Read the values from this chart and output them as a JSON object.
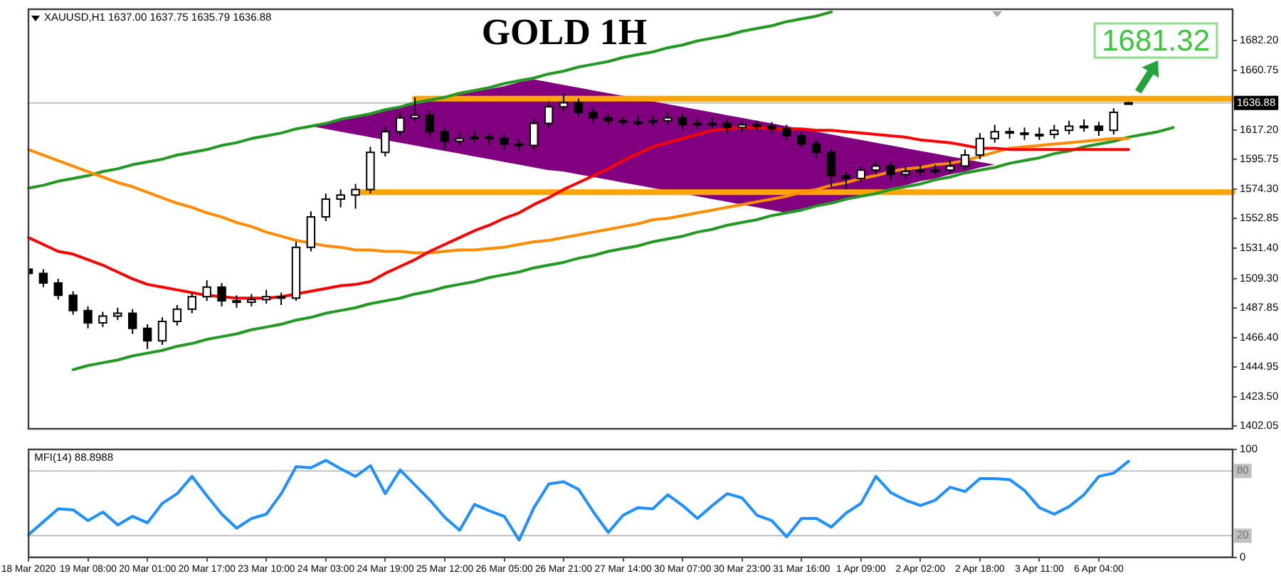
{
  "chart_data": [
    {
      "type": "candlestick",
      "title": "GOLD 1H",
      "subtitle": "XAUUSD,H1 1637.00 1637.75 1635.79 1636.88",
      "categories": [
        null,
        null,
        null,
        null,
        null,
        null,
        null,
        null,
        null,
        null,
        null,
        null,
        null,
        null,
        null,
        null,
        null,
        null,
        null,
        null,
        null,
        null,
        null,
        null,
        null,
        null,
        null,
        null,
        null,
        null,
        null,
        null,
        null,
        null,
        null,
        null,
        null,
        null,
        null,
        null,
        null,
        null,
        null,
        null,
        null,
        null,
        null,
        null,
        null,
        null,
        null,
        null,
        null,
        null,
        null,
        null,
        null,
        null,
        null,
        null,
        null,
        null,
        null,
        null,
        null,
        null,
        null,
        null,
        null,
        null,
        null,
        null,
        null,
        null,
        null,
        null,
        null,
        null,
        null,
        null,
        null,
        null
      ],
      "ohlc": [
        [
          1516,
          1519,
          1510,
          1513
        ],
        [
          1513,
          1516,
          1503,
          1506
        ],
        [
          1506,
          1509,
          1494,
          1497
        ],
        [
          1497,
          1500,
          1483,
          1486
        ],
        [
          1486,
          1489,
          1473,
          1477
        ],
        [
          1477,
          1485,
          1474,
          1482
        ],
        [
          1482,
          1488,
          1479,
          1484
        ],
        [
          1484,
          1487,
          1469,
          1473
        ],
        [
          1473,
          1476,
          1458,
          1464
        ],
        [
          1464,
          1481,
          1461,
          1478
        ],
        [
          1478,
          1490,
          1475,
          1487
        ],
        [
          1487,
          1499,
          1484,
          1496
        ],
        [
          1496,
          1508,
          1493,
          1503
        ],
        [
          1503,
          1506,
          1489,
          1493
        ],
        [
          1493,
          1497,
          1488,
          1492
        ],
        [
          1492,
          1498,
          1489,
          1494
        ],
        [
          1494,
          1501,
          1491,
          1496
        ],
        [
          1496,
          1499,
          1490,
          1495
        ],
        [
          1495,
          1536,
          1493,
          1532
        ],
        [
          1532,
          1558,
          1529,
          1554
        ],
        [
          1554,
          1571,
          1551,
          1567
        ],
        [
          1567,
          1574,
          1561,
          1570
        ],
        [
          1570,
          1578,
          1560,
          1574
        ],
        [
          1574,
          1605,
          1571,
          1601
        ],
        [
          1601,
          1620,
          1598,
          1616
        ],
        [
          1616,
          1630,
          1613,
          1626
        ],
        [
          1626,
          1641,
          1623,
          1628
        ],
        [
          1628,
          1631,
          1612,
          1616
        ],
        [
          1616,
          1619,
          1603,
          1609
        ],
        [
          1609,
          1615,
          1606,
          1611
        ],
        [
          1611,
          1617,
          1608,
          1612
        ],
        [
          1612,
          1615,
          1606,
          1611
        ],
        [
          1611,
          1614,
          1603,
          1607
        ],
        [
          1607,
          1611,
          1602,
          1606
        ],
        [
          1606,
          1626,
          1603,
          1622
        ],
        [
          1622,
          1638,
          1619,
          1634
        ],
        [
          1634,
          1644,
          1631,
          1637
        ],
        [
          1637,
          1640,
          1627,
          1630
        ],
        [
          1630,
          1633,
          1622,
          1626
        ],
        [
          1626,
          1629,
          1621,
          1624
        ],
        [
          1624,
          1627,
          1620,
          1623
        ],
        [
          1623,
          1628,
          1620,
          1623
        ],
        [
          1623,
          1628,
          1620,
          1624
        ],
        [
          1624,
          1630,
          1621,
          1626
        ],
        [
          1626,
          1629,
          1617,
          1621
        ],
        [
          1621,
          1626,
          1618,
          1622
        ],
        [
          1622,
          1627,
          1618,
          1622
        ],
        [
          1622,
          1625,
          1615,
          1619
        ],
        [
          1619,
          1624,
          1616,
          1621
        ],
        [
          1621,
          1624,
          1617,
          1620
        ],
        [
          1620,
          1623,
          1615,
          1618
        ],
        [
          1618,
          1621,
          1610,
          1613
        ],
        [
          1613,
          1616,
          1604,
          1607
        ],
        [
          1607,
          1610,
          1597,
          1601
        ],
        [
          1601,
          1604,
          1576,
          1584
        ],
        [
          1584,
          1587,
          1574,
          1582
        ],
        [
          1582,
          1591,
          1579,
          1588
        ],
        [
          1588,
          1595,
          1585,
          1591
        ],
        [
          1591,
          1594,
          1581,
          1585
        ],
        [
          1585,
          1591,
          1582,
          1587
        ],
        [
          1587,
          1592,
          1584,
          1588
        ],
        [
          1588,
          1592,
          1585,
          1588
        ],
        [
          1588,
          1596,
          1585,
          1591
        ],
        [
          1591,
          1603,
          1588,
          1599
        ],
        [
          1599,
          1615,
          1596,
          1611
        ],
        [
          1611,
          1621,
          1608,
          1616
        ],
        [
          1616,
          1619,
          1611,
          1615
        ],
        [
          1615,
          1619,
          1610,
          1614
        ],
        [
          1614,
          1619,
          1610,
          1614
        ],
        [
          1614,
          1621,
          1611,
          1617
        ],
        [
          1617,
          1624,
          1614,
          1620
        ],
        [
          1620,
          1625,
          1616,
          1620
        ],
        [
          1620,
          1623,
          1613,
          1617
        ],
        [
          1617,
          1633,
          1614,
          1630
        ],
        [
          1637.0,
          1637.75,
          1635.79,
          1636.88
        ],
        null,
        null,
        null,
        null,
        null,
        null,
        null
      ],
      "series": [
        {
          "type": "area",
          "color": "#800080",
          "values": [
            null,
            null,
            null,
            null,
            null,
            null,
            null,
            null,
            null,
            null,
            null,
            null,
            null,
            null,
            null,
            null,
            null,
            null,
            null,
            null,
            null,
            null,
            null,
            null,
            null,
            null,
            null,
            null,
            null,
            null,
            null,
            null,
            null,
            null,
            null,
            null,
            null,
            null,
            null,
            null,
            null,
            null,
            null,
            null,
            null,
            null,
            null,
            null,
            null,
            null,
            null,
            null,
            null,
            null,
            null,
            null,
            null,
            null,
            null,
            null,
            null,
            null,
            null,
            null,
            null,
            null,
            null,
            null,
            null,
            null,
            null,
            null,
            null,
            null,
            null,
            null,
            null,
            null,
            null,
            null,
            null,
            null
          ],
          "lower": [
            null,
            null,
            null,
            null,
            null,
            null,
            null,
            null,
            null,
            null,
            null,
            null,
            null,
            null,
            null,
            null,
            null,
            null,
            null,
            1620,
            1618,
            1616,
            1614,
            1612,
            1610,
            1608,
            1606,
            1604,
            1602,
            1600,
            1598,
            1596,
            1594,
            1592,
            1590,
            1588,
            1587,
            1585,
            1583,
            1581,
            1579,
            1577,
            1575,
            1573,
            1571,
            1569,
            1567,
            1565,
            1563,
            1561,
            1559,
            1557,
            1560,
            1562,
            1565,
            1567,
            1570,
            1572,
            1575,
            1577,
            1580,
            1582,
            1585,
            1587,
            1590,
            1592,
            null,
            null,
            null,
            null,
            null,
            null,
            null,
            null,
            null,
            null,
            null,
            null,
            null,
            null,
            null,
            null
          ],
          "upper": [
            null,
            null,
            null,
            null,
            null,
            null,
            null,
            null,
            null,
            null,
            null,
            null,
            null,
            null,
            null,
            null,
            null,
            null,
            null,
            1620,
            1622,
            1625,
            1627,
            1629,
            1631,
            1634,
            1636,
            1638,
            1640,
            1643,
            1645,
            1647,
            1649,
            1652,
            1654,
            1652,
            1650,
            1648,
            1646,
            1644,
            1642,
            1640,
            1638,
            1636,
            1634,
            1632,
            1630,
            1628,
            1626,
            1624,
            1622,
            1620,
            1618,
            1616,
            1614,
            1612,
            1610,
            1608,
            1606,
            1604,
            1602,
            1600,
            1598,
            1596,
            1594,
            1592,
            null,
            null,
            null,
            null,
            null,
            null,
            null,
            null,
            null,
            null,
            null,
            null,
            null,
            null,
            null,
            null
          ]
        },
        {
          "type": "line",
          "color": "#ff0000",
          "values": [
            1539,
            1534,
            1529,
            1527,
            1523,
            1519,
            1514,
            1509,
            1505,
            1503,
            1501,
            1499,
            1497,
            1496,
            1495,
            1495,
            1495,
            1496,
            1498,
            1500,
            1502,
            1504,
            1505,
            1507,
            1513,
            1518,
            1523,
            1529,
            1534,
            1539,
            1544,
            1548,
            1553,
            1557,
            1563,
            1568,
            1574,
            1579,
            1584,
            1589,
            1595,
            1600,
            1605,
            1608,
            1611,
            1614,
            1617,
            1618,
            1619,
            1619,
            1618,
            1618,
            1618,
            1617,
            1617,
            1616,
            1615,
            1614,
            1613,
            1612,
            1610,
            1609,
            1608,
            1606,
            1604,
            1604,
            1603,
            1603,
            1603,
            1603,
            1603,
            1603,
            1603,
            1603,
            1603,
            null,
            null,
            null,
            null,
            null,
            null,
            null
          ]
        },
        {
          "type": "line",
          "color": "#ff8c00",
          "values": [
            1603,
            1599,
            1595,
            1591,
            1587,
            1583,
            1579,
            1576,
            1572,
            1568,
            1564,
            1561,
            1557,
            1554,
            1550,
            1547,
            1543,
            1540,
            1537,
            1535,
            1533,
            1532,
            1530,
            1530,
            1529,
            1529,
            1528,
            1528,
            1529,
            1530,
            1530,
            1531,
            1532,
            1534,
            1536,
            1537,
            1539,
            1541,
            1543,
            1545,
            1547,
            1549,
            1552,
            1553,
            1555,
            1557,
            1559,
            1561,
            1563,
            1565,
            1567,
            1569,
            1572,
            1574,
            1577,
            1579,
            1582,
            1584,
            1587,
            1589,
            1590,
            1592,
            1593,
            1595,
            1598,
            1601,
            1604,
            1605,
            1606,
            1607,
            1608,
            1609,
            1610,
            1611,
            1611,
            null,
            null,
            null,
            null,
            null,
            null,
            null
          ]
        },
        {
          "type": "line",
          "color": "#229922",
          "values": [
            1575,
            1577,
            1580,
            1582,
            1584,
            1587,
            1589,
            1592,
            1594,
            1596,
            1599,
            1601,
            1603,
            1606,
            1608,
            1611,
            1613,
            1615,
            1618,
            1620,
            1622,
            1625,
            1627,
            1629,
            1632,
            1634,
            1637,
            1639,
            1641,
            1644,
            1646,
            1648,
            1651,
            1653,
            1655,
            1658,
            1660,
            1663,
            1665,
            1667,
            1670,
            1672,
            1674,
            1677,
            1679,
            1682,
            1684,
            1686,
            1689,
            1691,
            1693,
            1696,
            1698,
            1700,
            1703,
            null,
            null,
            null,
            null,
            null,
            null,
            null,
            null,
            null,
            null,
            null,
            null,
            null,
            null,
            null,
            null,
            null,
            null,
            null,
            null,
            null,
            null,
            null,
            null,
            null,
            null,
            null
          ]
        },
        {
          "type": "line",
          "color": "#229922",
          "values": [
            null,
            null,
            null,
            1443,
            1446,
            1448,
            1450,
            1453,
            1455,
            1457,
            1460,
            1462,
            1465,
            1467,
            1469,
            1472,
            1474,
            1476,
            1479,
            1481,
            1484,
            1486,
            1488,
            1491,
            1493,
            1495,
            1498,
            1500,
            1503,
            1505,
            1507,
            1510,
            1512,
            1514,
            1517,
            1519,
            1521,
            1524,
            1526,
            1529,
            1531,
            1533,
            1536,
            1538,
            1540,
            1543,
            1545,
            1548,
            1550,
            1552,
            1555,
            1557,
            1559,
            1562,
            1564,
            1567,
            1569,
            1571,
            1574,
            1576,
            1578,
            1581,
            1583,
            1586,
            1588,
            1590,
            1593,
            1595,
            1597,
            1600,
            1602,
            1605,
            1607,
            1609,
            1612,
            1614,
            1616,
            1619,
            null,
            null,
            null,
            null
          ]
        },
        {
          "type": "line",
          "color": "#ffa500",
          "values": [
            null,
            null,
            null,
            null,
            null,
            null,
            null,
            null,
            null,
            null,
            null,
            null,
            null,
            null,
            null,
            null,
            null,
            null,
            null,
            null,
            null,
            null,
            null,
            null,
            null,
            null,
            1640,
            1640,
            1640,
            1640,
            1640,
            1640,
            1640,
            1640,
            1640,
            1640,
            1640,
            1640,
            1640,
            1640,
            1640,
            1640,
            1640,
            1640,
            1640,
            1640,
            1640,
            1640,
            1640,
            1640,
            1640,
            1640,
            1640,
            1640,
            1640,
            1640,
            1640,
            1640,
            1640,
            1640,
            1640,
            1640,
            1640,
            1640,
            1640,
            1640,
            1640,
            1640,
            1640,
            1640,
            1640,
            1640,
            1640,
            1640,
            1640,
            1640,
            1640,
            1640,
            1640,
            1640,
            1640,
            1640
          ]
        },
        {
          "type": "line",
          "color": "#ffa500",
          "values": [
            null,
            null,
            null,
            null,
            null,
            null,
            null,
            null,
            null,
            null,
            null,
            null,
            null,
            null,
            null,
            null,
            null,
            null,
            null,
            null,
            null,
            null,
            1572,
            1572,
            1572,
            1572,
            1572,
            1572,
            1572,
            1572,
            1572,
            1572,
            1572,
            1572,
            1572,
            1572,
            1572,
            1572,
            1572,
            1572,
            1572,
            1572,
            1572,
            1572,
            1572,
            1572,
            1572,
            1572,
            1572,
            1572,
            1572,
            1572,
            1572,
            1572,
            1572,
            1572,
            1572,
            1572,
            1572,
            1572,
            1572,
            1572,
            1572,
            1572,
            1572,
            1572,
            1572,
            1572,
            1572,
            1572,
            1572,
            1572,
            1572,
            1572,
            1572,
            1572,
            1572,
            1572,
            1572,
            1572,
            1572,
            1572
          ]
        }
      ],
      "ylim": [
        1400,
        1705
      ],
      "yticks": [
        {
          "value": 1682.2,
          "label": "1682.20"
        },
        1660.75,
        {
          "value": 1617.2,
          "label": "1617.20"
        },
        1595.75,
        {
          "value": 1574.3,
          "label": "1574.30"
        },
        1552.85,
        {
          "value": 1531.4,
          "label": "1531.40"
        },
        {
          "value": 1509.3,
          "label": "1509.30"
        },
        1487.85,
        {
          "value": 1466.4,
          "label": "1466.40"
        },
        1444.95,
        {
          "value": 1423.5,
          "label": "1423.50"
        },
        1402.05
      ],
      "tick_labels": "y",
      "ref_lines": [
        {
          "axis": "y",
          "value": 1636.88,
          "label": "1636.88",
          "color": "#c0c0c0"
        }
      ],
      "annotations": [
        "1681.32"
      ],
      "grid": false,
      "legend": false
    },
    {
      "type": "line",
      "title": "MFI(14) 88.8988",
      "categories": [
        "18 Mar 2020",
        null,
        null,
        null,
        "19 Mar 08:00",
        null,
        null,
        null,
        "20 Mar 01:00",
        null,
        null,
        null,
        "20 Mar 17:00",
        null,
        null,
        null,
        "23 Mar 10:00",
        null,
        null,
        null,
        "24 Mar 03:00",
        null,
        null,
        null,
        "24 Mar 19:00",
        null,
        null,
        null,
        "25 Mar 12:00",
        null,
        null,
        null,
        "26 Mar 05:00",
        null,
        null,
        null,
        "26 Mar 21:00",
        null,
        null,
        null,
        "27 Mar 14:00",
        null,
        null,
        null,
        "30 Mar 07:00",
        null,
        null,
        null,
        "30 Mar 23:00",
        null,
        null,
        null,
        "31 Mar 16:00",
        null,
        null,
        null,
        "1 Apr 09:00",
        null,
        null,
        null,
        "2 Apr 02:00",
        null,
        null,
        null,
        "2 Apr 18:00",
        null,
        null,
        null,
        "3 Apr 11:00",
        null,
        null,
        null,
        "6 Apr 04:00",
        null,
        null,
        null,
        null,
        null,
        null,
        null,
        null,
        null
      ],
      "series": [
        {
          "color": "#1e90ff",
          "values": [
            21,
            33,
            45,
            44,
            34,
            42,
            30,
            38,
            32,
            50,
            59,
            75,
            57,
            40,
            27,
            36,
            40,
            59,
            84,
            83,
            90,
            82,
            75,
            85,
            59,
            81,
            67,
            53,
            37,
            25,
            49,
            43,
            38,
            16,
            46,
            68,
            70,
            63,
            42,
            23,
            39,
            46,
            45,
            58,
            48,
            36,
            48,
            59,
            55,
            39,
            34,
            19,
            36,
            36,
            28,
            41,
            50,
            75,
            60,
            53,
            48,
            53,
            65,
            61,
            73,
            73,
            72,
            62,
            46,
            40,
            47,
            58,
            75,
            78,
            89,
            null,
            null,
            null,
            null,
            null,
            null,
            null
          ]
        }
      ],
      "ylim": [
        0,
        100
      ],
      "yticks": [
        0,
        100
      ],
      "ref_lines": [
        {
          "axis": "y",
          "value": 80,
          "label": "80",
          "color": "#c0c0c0"
        },
        {
          "axis": "y",
          "value": 20,
          "label": "20",
          "color": "#c0c0c0"
        }
      ],
      "marker": "none",
      "grid": false,
      "legend": false
    }
  ]
}
